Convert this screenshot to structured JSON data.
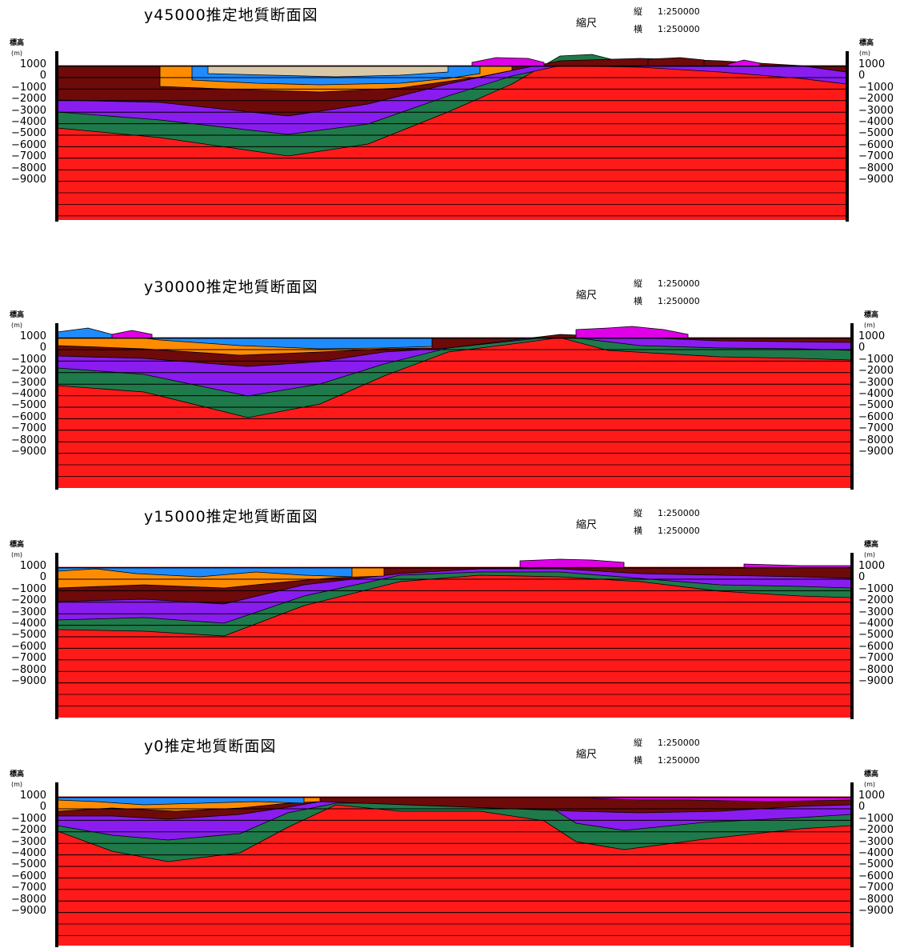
{
  "common": {
    "elev_label": "標高",
    "unit_label": "(m)",
    "scale_label": "縮尺",
    "scale_vertical_key": "縦",
    "scale_vertical_value": "1:250000",
    "scale_horizontal_key": "横",
    "scale_horizontal_value": "1:250000",
    "ticks_left": [
      "1000",
      "0",
      "−1000",
      "−2000",
      "−3000",
      "−4000",
      "−5000",
      "−6000",
      "−7000",
      "−8000",
      "−9000"
    ],
    "ticks_right": [
      "1000",
      "0",
      "−1000",
      "−2000",
      "−3000",
      "−4000",
      "−5000",
      "−6000",
      "−7000",
      "−8000",
      "−9000"
    ]
  },
  "colors": {
    "basement": "#ff1a1a",
    "green": "#1e7a4a",
    "purple": "#8a1cf0",
    "maroon": "#6e0a0a",
    "orange": "#ff8c00",
    "blue": "#1e8cff",
    "magenta": "#e000e8",
    "tan": "#d8c8a8"
  },
  "panels": [
    {
      "title": "y45000推定地質断面図"
    },
    {
      "title": "y30000推定地質断面図"
    },
    {
      "title": "y15000推定地質断面図"
    },
    {
      "title": "y0推定地質断面図"
    }
  ]
}
